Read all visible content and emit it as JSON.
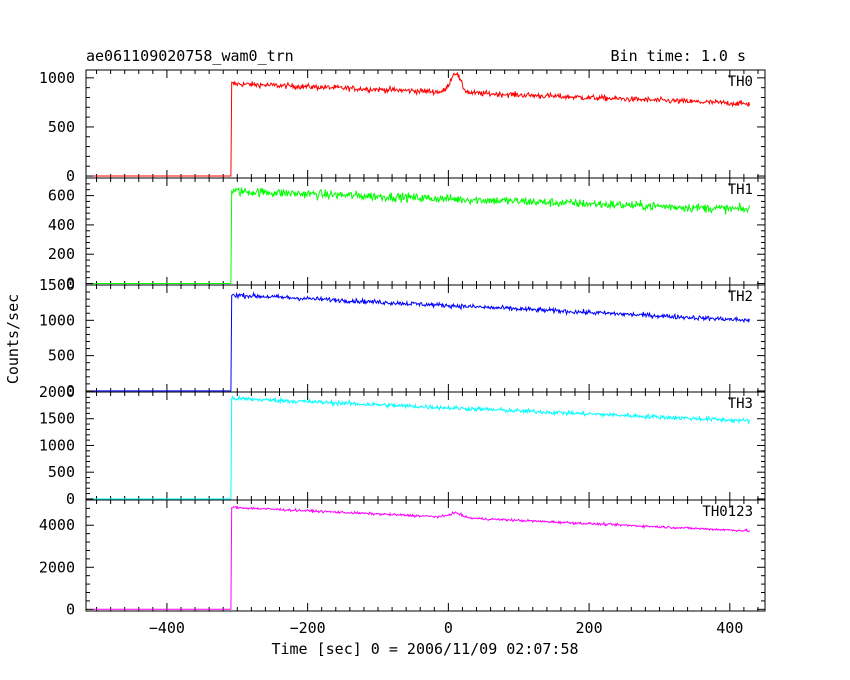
{
  "chart_data": {
    "type": "line",
    "title": "ae061109020758_wam0_trn",
    "bin_time": "Bin time: 1.0 s",
    "xlabel": "Time [sec] 0 = 2006/11/09 02:07:58",
    "ylabel": "Counts/sec",
    "xlim": [
      -515,
      450
    ],
    "xticks": [
      -400,
      -200,
      0,
      200,
      400
    ],
    "xtick_labels": [
      "−400",
      "−200",
      "0",
      "200",
      "400"
    ],
    "grid": false,
    "panels": [
      {
        "name": "TH0",
        "color": "#ff0000",
        "ylim": [
          -20,
          1080
        ],
        "yticks": [
          0,
          500,
          1000
        ],
        "ytick_labels": [
          "0",
          "500",
          "1000"
        ],
        "baseline": 0,
        "jump_x": -308,
        "start": 940,
        "end": 735,
        "noise": 28,
        "bump": {
          "x": 10,
          "height": 200,
          "width": 10
        }
      },
      {
        "name": "TH1",
        "color": "#00ff00",
        "ylim": [
          -10,
          720
        ],
        "yticks": [
          0,
          200,
          400,
          600
        ],
        "ytick_labels": [
          "0",
          "200",
          "400",
          "600"
        ],
        "baseline": 0,
        "jump_x": -308,
        "start": 630,
        "end": 505,
        "noise": 30
      },
      {
        "name": "TH2",
        "color": "#0000ff",
        "ylim": [
          -15,
          1500
        ],
        "yticks": [
          0,
          500,
          1000,
          1500
        ],
        "ytick_labels": [
          "0",
          "500",
          "1000",
          "1500"
        ],
        "baseline": 0,
        "jump_x": -308,
        "start": 1360,
        "end": 1000,
        "noise": 32
      },
      {
        "name": "TH3",
        "color": "#00ffff",
        "ylim": [
          -20,
          2000
        ],
        "yticks": [
          0,
          500,
          1000,
          1500,
          2000
        ],
        "ytick_labels": [
          "0",
          "500",
          "1000",
          "1500",
          "2000"
        ],
        "baseline": 0,
        "jump_x": -308,
        "start": 1880,
        "end": 1460,
        "noise": 40
      },
      {
        "name": "TH0123",
        "color": "#ff00ff",
        "ylim": [
          -80,
          5200
        ],
        "yticks": [
          0,
          2000,
          4000
        ],
        "ytick_labels": [
          "0",
          "2000",
          "4000"
        ],
        "baseline": 0,
        "jump_x": -308,
        "start": 4850,
        "end": 3730,
        "noise": 55,
        "bump": {
          "x": 10,
          "height": 220,
          "width": 12
        }
      }
    ]
  }
}
